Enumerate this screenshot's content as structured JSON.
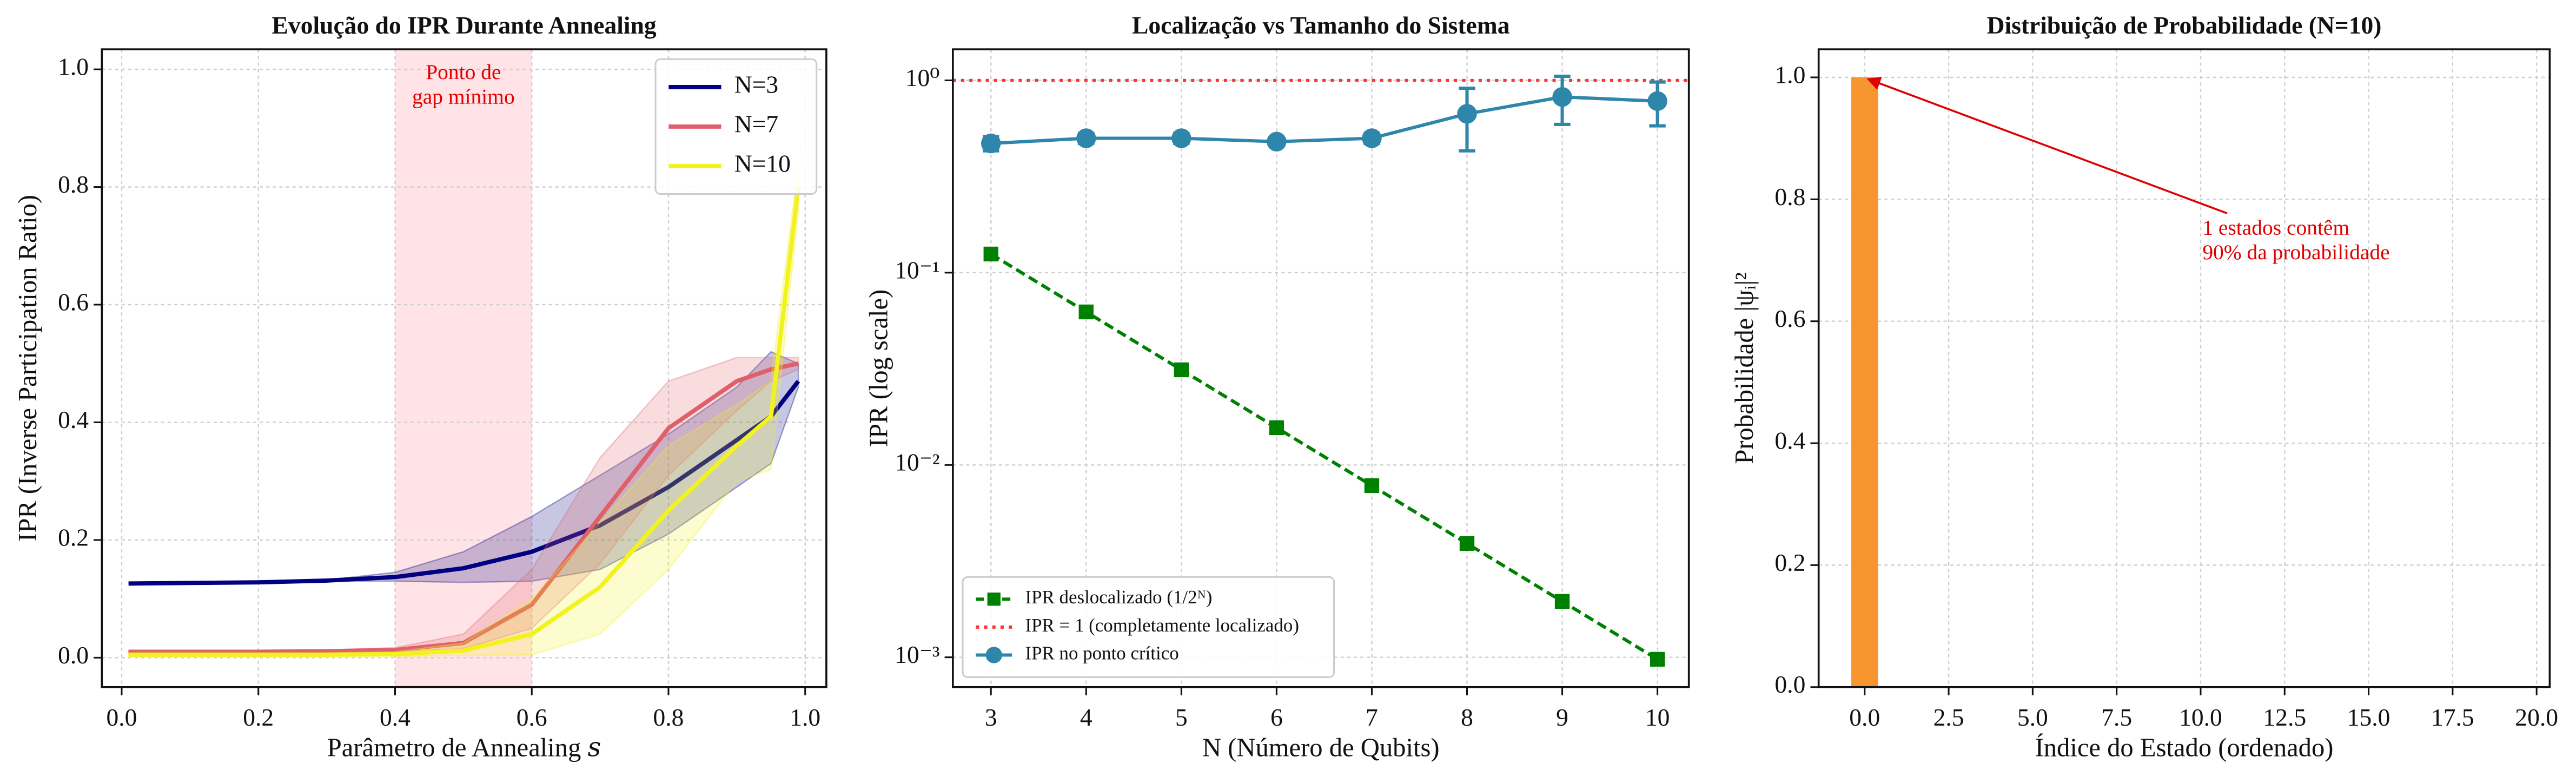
{
  "chart_data": [
    {
      "type": "line",
      "title": "Evolução do IPR Durante Annealing",
      "xlabel": "Parâmetro de Annealing 𝑠",
      "ylabel": "IPR (Inverse Participation Ratio)",
      "x": [
        0.01,
        0.1,
        0.2,
        0.3,
        0.4,
        0.5,
        0.6,
        0.7,
        0.8,
        0.9,
        0.95,
        0.99
      ],
      "series": [
        {
          "name": "N=3",
          "color": "#000080",
          "values": [
            0.126,
            0.127,
            0.128,
            0.131,
            0.137,
            0.152,
            0.18,
            0.225,
            0.29,
            0.37,
            0.41,
            0.47
          ],
          "lower": [
            0.126,
            0.127,
            0.128,
            0.13,
            0.13,
            0.128,
            0.13,
            0.15,
            0.21,
            0.29,
            0.33,
            0.46
          ],
          "upper": [
            0.126,
            0.127,
            0.129,
            0.132,
            0.145,
            0.18,
            0.24,
            0.31,
            0.38,
            0.46,
            0.52,
            0.5
          ]
        },
        {
          "name": "N=7",
          "color": "#e0606a",
          "values": [
            0.01,
            0.01,
            0.01,
            0.011,
            0.013,
            0.025,
            0.09,
            0.24,
            0.39,
            0.47,
            0.49,
            0.5
          ],
          "lower": [
            0.008,
            0.008,
            0.008,
            0.009,
            0.01,
            0.015,
            0.05,
            0.16,
            0.31,
            0.42,
            0.47,
            0.49
          ],
          "upper": [
            0.012,
            0.012,
            0.012,
            0.013,
            0.017,
            0.04,
            0.15,
            0.34,
            0.47,
            0.51,
            0.51,
            0.51
          ]
        },
        {
          "name": "N=10",
          "color": "#f2f21e",
          "values": [
            0.005,
            0.005,
            0.005,
            0.005,
            0.006,
            0.012,
            0.04,
            0.12,
            0.25,
            0.36,
            0.41,
            0.8
          ],
          "lower": [
            0.002,
            0.002,
            0.002,
            0.002,
            0.002,
            0.004,
            0.005,
            0.04,
            0.15,
            0.3,
            0.32,
            0.76
          ],
          "upper": [
            0.008,
            0.008,
            0.008,
            0.008,
            0.01,
            0.025,
            0.1,
            0.23,
            0.36,
            0.43,
            0.47,
            0.84
          ]
        }
      ],
      "span": [
        0.4,
        0.6
      ],
      "span_color": "#ffc0c8",
      "annotation": [
        "Ponto de",
        "gap mínimo"
      ],
      "annotation_color": "#e00000",
      "xlim": [
        -0.029,
        1.031
      ],
      "ylim": [
        -0.05,
        1.034
      ],
      "xticks": [
        {
          "value": 0,
          "label": "0.0"
        },
        0.2,
        0.4,
        0.6,
        0.8,
        {
          "value": 1,
          "label": "1.0"
        }
      ],
      "yticks": [
        {
          "value": 0,
          "label": "0.0"
        },
        0.2,
        0.4,
        0.6,
        0.8,
        {
          "value": 1,
          "label": "1.0"
        }
      ],
      "grid": true,
      "legend": "upper right"
    },
    {
      "type": "line",
      "title": "Localização vs Tamanho do Sistema",
      "xlabel": "N (Número de Qubits)",
      "ylabel": "IPR (log scale)",
      "log_y": true,
      "x": [
        3,
        4,
        5,
        6,
        7,
        8,
        9,
        10
      ],
      "series": [
        {
          "name": "IPR deslocalizado (1/2ᴺ)",
          "color": "#008000",
          "linestyle": "dashed",
          "marker": "square",
          "values": [
            0.125,
            0.0625,
            0.03125,
            0.015625,
            0.0078125,
            0.00390625,
            0.001953125,
            0.0009765625
          ]
        },
        {
          "name": "IPR = 1 (completamente localizado)",
          "color": "#ff3333",
          "kind": "hline",
          "value": 1
        },
        {
          "name": "IPR no ponto crítico",
          "color": "#2e86ab",
          "marker": "circle",
          "values": [
            0.47,
            0.5,
            0.5,
            0.48,
            0.5,
            0.67,
            0.82,
            0.78
          ],
          "errors": [
            0.04,
            0.03,
            0.03,
            0.02,
            0.03,
            0.24,
            0.23,
            0.2
          ]
        }
      ],
      "xlim": [
        2.6,
        10.33
      ],
      "ylim": [
        0.0007,
        1.45
      ],
      "xticks": [
        3,
        4,
        5,
        6,
        7,
        8,
        9,
        10
      ],
      "yticks": [
        {
          "value": 0.001,
          "label": "10⁻³"
        },
        {
          "value": 0.01,
          "label": "10⁻²"
        },
        {
          "value": 0.1,
          "label": "10⁻¹"
        },
        {
          "value": 1,
          "label": "10⁰"
        }
      ],
      "grid": true,
      "legend": "lower left"
    },
    {
      "type": "bar",
      "title": "Distribuição de Probabilidade (N=10)",
      "xlabel": "Índice do Estado (ordenado)",
      "ylabel": "Probabilidade |ψᵢ|²",
      "x": [
        0,
        1,
        2,
        3,
        4,
        5,
        6,
        7,
        8,
        9,
        10,
        11,
        12,
        13,
        14,
        15,
        16,
        17,
        18,
        19
      ],
      "values": [
        1.0,
        0,
        0,
        0,
        0,
        0,
        0,
        0,
        0,
        0,
        0,
        0,
        0,
        0,
        0,
        0,
        0,
        0,
        0,
        0
      ],
      "color": "#f7962f",
      "annotation": [
        "1 estados contêm",
        "90% da probabilidade"
      ],
      "annotation_color": "#e00000",
      "xlim": [
        -1.37,
        20.39
      ],
      "ylim": [
        0,
        1.046
      ],
      "xticks": [
        {
          "value": 0,
          "label": "0.0"
        },
        2.5,
        {
          "value": 5,
          "label": "5.0"
        },
        7.5,
        {
          "value": 10,
          "label": "10.0"
        },
        12.5,
        {
          "value": 15,
          "label": "15.0"
        },
        17.5,
        {
          "value": 20,
          "label": "20.0"
        }
      ],
      "yticks": [
        {
          "value": 0,
          "label": "0.0"
        },
        0.2,
        0.4,
        0.6,
        0.8,
        {
          "value": 1,
          "label": "1.0"
        }
      ],
      "grid": true
    }
  ]
}
